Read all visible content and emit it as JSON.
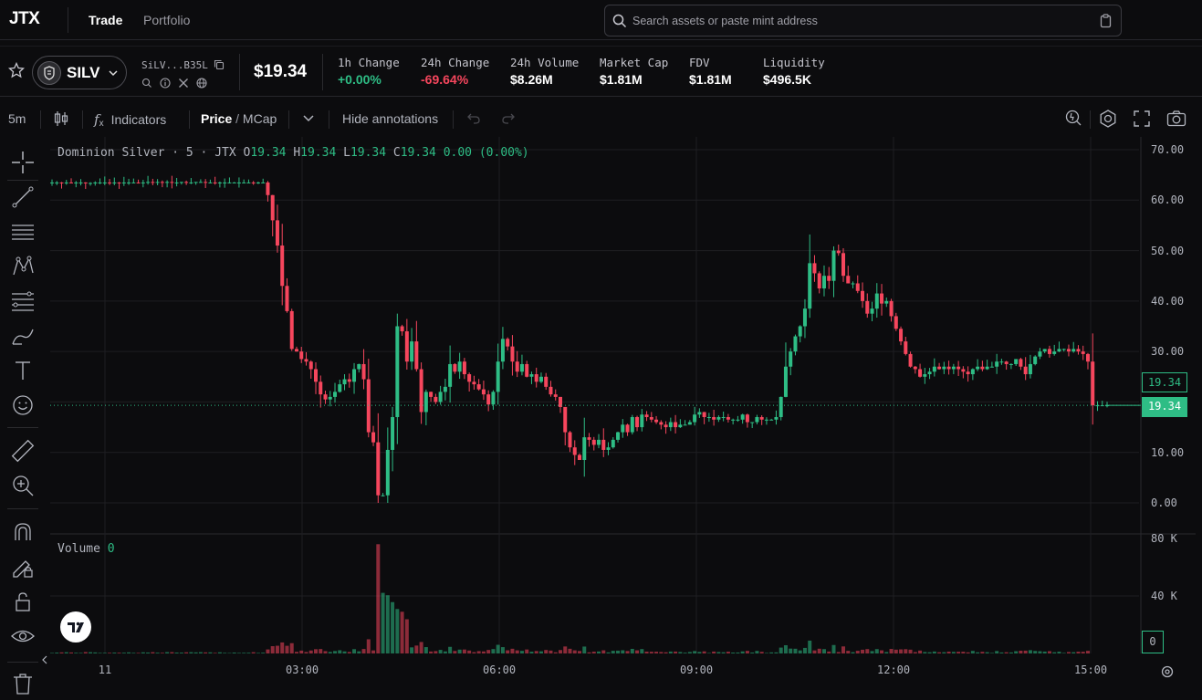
{
  "nav": {
    "logo": "JTX",
    "links": [
      "Trade",
      "Portfolio"
    ],
    "search_placeholder": "Search assets or paste mint address"
  },
  "token": {
    "symbol": "SILV",
    "mint_short": "SiLV...B35L",
    "price": "$19.34"
  },
  "stats": [
    {
      "label": "1h Change",
      "value": "+0.00%",
      "tone": "green"
    },
    {
      "label": "24h Change",
      "value": "-69.64%",
      "tone": "red"
    },
    {
      "label": "24h Volume",
      "value": "$8.26M",
      "tone": "white"
    },
    {
      "label": "Market Cap",
      "value": "$1.81M",
      "tone": "white"
    },
    {
      "label": "FDV",
      "value": "$1.81M",
      "tone": "white"
    },
    {
      "label": "Liquidity",
      "value": "$496.5K",
      "tone": "white"
    }
  ],
  "toolbar": {
    "interval": "5m",
    "indicators": "Indicators",
    "price_label": "Price",
    "mcap_label": "MCap",
    "hide_annotations": "Hide annotations"
  },
  "legend": {
    "name": "Dominion Silver",
    "interval": "5",
    "exchange": "JTX",
    "open": "19.34",
    "high": "19.34",
    "low": "19.34",
    "close": "19.34",
    "change": "0.00",
    "change_pct": "(0.00%)"
  },
  "volume_legend": {
    "label": "Volume",
    "value": "0"
  },
  "price_markers": {
    "prev": "19.34",
    "last": "19.34"
  },
  "volume_marker": "0",
  "colors": {
    "up": "#2ebd85",
    "down": "#f6465d",
    "background": "#0c0c0e",
    "grid": "#1e1e22"
  },
  "chart_data": {
    "type": "candlestick",
    "interval": "5m",
    "ylim": [
      0,
      70
    ],
    "y_ticks": [
      "0.00",
      "10.00",
      "20.00",
      "30.00",
      "40.00",
      "50.00",
      "60.00",
      "70.00"
    ],
    "x_ticks": [
      "11",
      "03:00",
      "06:00",
      "09:00",
      "12:00",
      "15:00"
    ],
    "volume_ticks": [
      "40 K",
      "80 K"
    ],
    "volume_ylim": [
      0,
      80000
    ],
    "series_close": [
      63.5,
      63.5,
      63.4,
      63.5,
      63.4,
      63.5,
      63.5,
      63.4,
      63.4,
      63.5,
      63.5,
      63.5,
      63.4,
      63.5,
      63.4,
      63.5,
      63.5,
      63.5,
      63.4,
      63.5,
      63.6,
      63.5,
      63.6,
      63.5,
      63.6,
      63.5,
      63.5,
      63.6,
      63.5,
      63.5,
      63.6,
      63.6,
      63.5,
      63.5,
      63.4,
      63.5,
      63.5,
      63.5,
      63.5,
      63.5,
      63.5,
      63.5,
      63.4,
      63.5,
      63.5,
      61.0,
      56.0,
      51.0,
      43.0,
      38.0,
      30.5,
      30.0,
      28.5,
      28.0,
      26.5,
      24.0,
      21.5,
      20.5,
      21.0,
      22.0,
      23.5,
      24.5,
      24.0,
      26.5,
      27.5,
      24.5,
      14.0,
      12.0,
      1.5,
      1.5,
      10.5,
      17.0,
      35.0,
      34.0,
      28.0,
      32.0,
      26.5,
      18.0,
      22.0,
      21.0,
      20.0,
      22.0,
      23.0,
      27.5,
      26.0,
      28.0,
      25.5,
      24.0,
      23.5,
      22.5,
      21.5,
      19.5,
      22.0,
      28.0,
      32.5,
      31.0,
      28.0,
      26.0,
      27.5,
      25.0,
      25.5,
      24.0,
      25.0,
      23.0,
      21.5,
      21.0,
      19.0,
      14.0,
      11.0,
      9.5,
      8.5,
      13.0,
      12.5,
      11.5,
      12.5,
      10.5,
      11.0,
      12.5,
      14.0,
      15.5,
      14.0,
      17.0,
      15.0,
      17.5,
      17.0,
      16.5,
      16.0,
      15.5,
      15.0,
      16.0,
      15.0,
      15.5,
      15.5,
      16.0,
      17.5,
      18.0,
      17.0,
      17.0,
      16.5,
      17.0,
      17.0,
      16.5,
      16.5,
      16.5,
      17.5,
      16.0,
      16.0,
      17.0,
      16.5,
      16.5,
      16.5,
      17.0,
      21.0,
      27.0,
      30.0,
      33.0,
      35.0,
      38.5,
      47.5,
      45.5,
      42.5,
      45.0,
      44.0,
      50.0,
      49.5,
      45.0,
      43.5,
      43.5,
      42.0,
      40.0,
      37.5,
      38.5,
      41.5,
      39.5,
      40.0,
      37.0,
      34.5,
      32.0,
      29.5,
      27.0,
      26.5,
      25.0,
      25.5,
      26.0,
      27.0,
      26.5,
      27.0,
      26.5,
      27.0,
      26.5,
      26.0,
      25.5,
      26.5,
      27.0,
      26.5,
      27.0,
      27.0,
      28.0,
      28.0,
      27.5,
      27.5,
      28.5,
      27.0,
      25.5,
      27.5,
      29.0,
      30.0,
      30.5,
      29.5,
      30.0,
      30.5,
      30.5,
      30.0,
      30.5,
      30.0,
      29.5,
      28.0,
      19.34,
      19.34,
      19.34,
      19.34
    ]
  }
}
